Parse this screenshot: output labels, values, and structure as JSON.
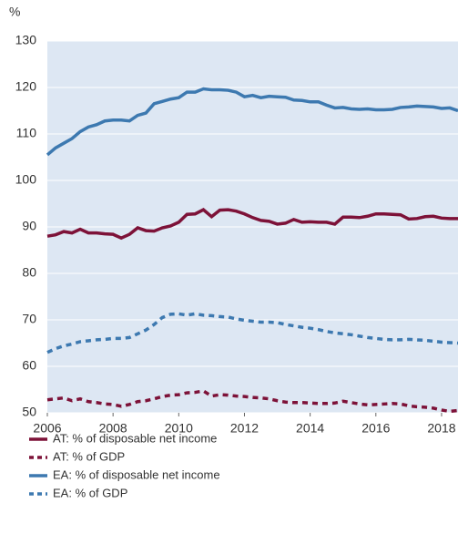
{
  "chart_data": {
    "type": "line",
    "y_label": "%",
    "x": [
      2006,
      2006.25,
      2006.5,
      2006.75,
      2007,
      2007.25,
      2007.5,
      2007.75,
      2008,
      2008.25,
      2008.5,
      2008.75,
      2009,
      2009.25,
      2009.5,
      2009.75,
      2010,
      2010.25,
      2010.5,
      2010.75,
      2011,
      2011.25,
      2011.5,
      2011.75,
      2012,
      2012.25,
      2012.5,
      2012.75,
      2013,
      2013.25,
      2013.5,
      2013.75,
      2014,
      2014.25,
      2014.5,
      2014.75,
      2015,
      2015.25,
      2015.5,
      2015.75,
      2016,
      2016.25,
      2016.5,
      2016.75,
      2017,
      2017.25,
      2017.5,
      2017.75,
      2018,
      2018.25,
      2018.5
    ],
    "series": [
      {
        "name": "AT: % of disposable net income",
        "color": "#7d1238",
        "dashed": false,
        "values": [
          88,
          88.3,
          89,
          88.7,
          89.5,
          88.7,
          88.7,
          88.5,
          88.4,
          87.6,
          88.4,
          89.8,
          89.2,
          89.1,
          89.8,
          90.2,
          91,
          92.7,
          92.8,
          93.7,
          92.2,
          93.6,
          93.7,
          93.4,
          92.8,
          92,
          91.4,
          91.2,
          90.6,
          90.8,
          91.6,
          91,
          91.1,
          91,
          91,
          90.6,
          92.1,
          92.1,
          92,
          92.3,
          92.8,
          92.8,
          92.7,
          92.6,
          91.7,
          91.8,
          92.2,
          92.3,
          91.9,
          91.8,
          91.8
        ]
      },
      {
        "name": "AT: % of GDP",
        "color": "#7d1238",
        "dashed": true,
        "values": [
          52.8,
          53,
          53.2,
          52.6,
          53,
          52.4,
          52.2,
          51.9,
          51.8,
          51.4,
          51.8,
          52.4,
          52.6,
          53,
          53.5,
          53.8,
          53.9,
          54.3,
          54.4,
          54.7,
          53.6,
          53.9,
          53.8,
          53.6,
          53.5,
          53.3,
          53.2,
          53,
          52.6,
          52.3,
          52.2,
          52.2,
          52.1,
          52,
          52,
          52.1,
          52.5,
          52.2,
          51.9,
          51.7,
          51.8,
          51.9,
          52,
          51.9,
          51.5,
          51.3,
          51.2,
          51,
          50.6,
          50.3,
          50.5
        ]
      },
      {
        "name": "EA: % of disposable net income",
        "color": "#3d79b0",
        "dashed": false,
        "values": [
          105.5,
          107,
          108,
          109,
          110.5,
          111.5,
          112,
          112.8,
          113,
          113,
          112.8,
          114,
          114.5,
          116.5,
          117,
          117.5,
          117.8,
          119,
          119,
          119.7,
          119.5,
          119.5,
          119.4,
          119,
          118,
          118.3,
          117.8,
          118.1,
          118,
          117.9,
          117.3,
          117.2,
          116.9,
          116.9,
          116.2,
          115.6,
          115.7,
          115.4,
          115.3,
          115.4,
          115.2,
          115.2,
          115.3,
          115.7,
          115.8,
          116,
          115.9,
          115.8,
          115.5,
          115.6,
          115
        ]
      },
      {
        "name": "EA: % of GDP",
        "color": "#3d79b0",
        "dashed": true,
        "values": [
          63,
          63.8,
          64.4,
          64.8,
          65.3,
          65.5,
          65.7,
          65.8,
          66,
          66,
          66.2,
          67,
          67.8,
          69,
          70.5,
          71.2,
          71.3,
          71,
          71.3,
          71,
          70.9,
          70.7,
          70.6,
          70.2,
          69.9,
          69.7,
          69.5,
          69.5,
          69.4,
          69,
          68.7,
          68.4,
          68.2,
          67.9,
          67.5,
          67.2,
          67,
          66.8,
          66.5,
          66.2,
          66,
          65.8,
          65.7,
          65.7,
          65.8,
          65.7,
          65.6,
          65.4,
          65.2,
          65.1,
          65
        ]
      }
    ],
    "xlim": [
      2006,
      2018.5
    ],
    "xticks": [
      2006,
      2008,
      2010,
      2012,
      2014,
      2016,
      2018
    ],
    "ylim": [
      50,
      130
    ],
    "yticks": [
      50,
      60,
      70,
      80,
      90,
      100,
      110,
      120,
      130
    ],
    "grid": true,
    "plot_background": "#dde7f3",
    "legend": "bottom"
  }
}
